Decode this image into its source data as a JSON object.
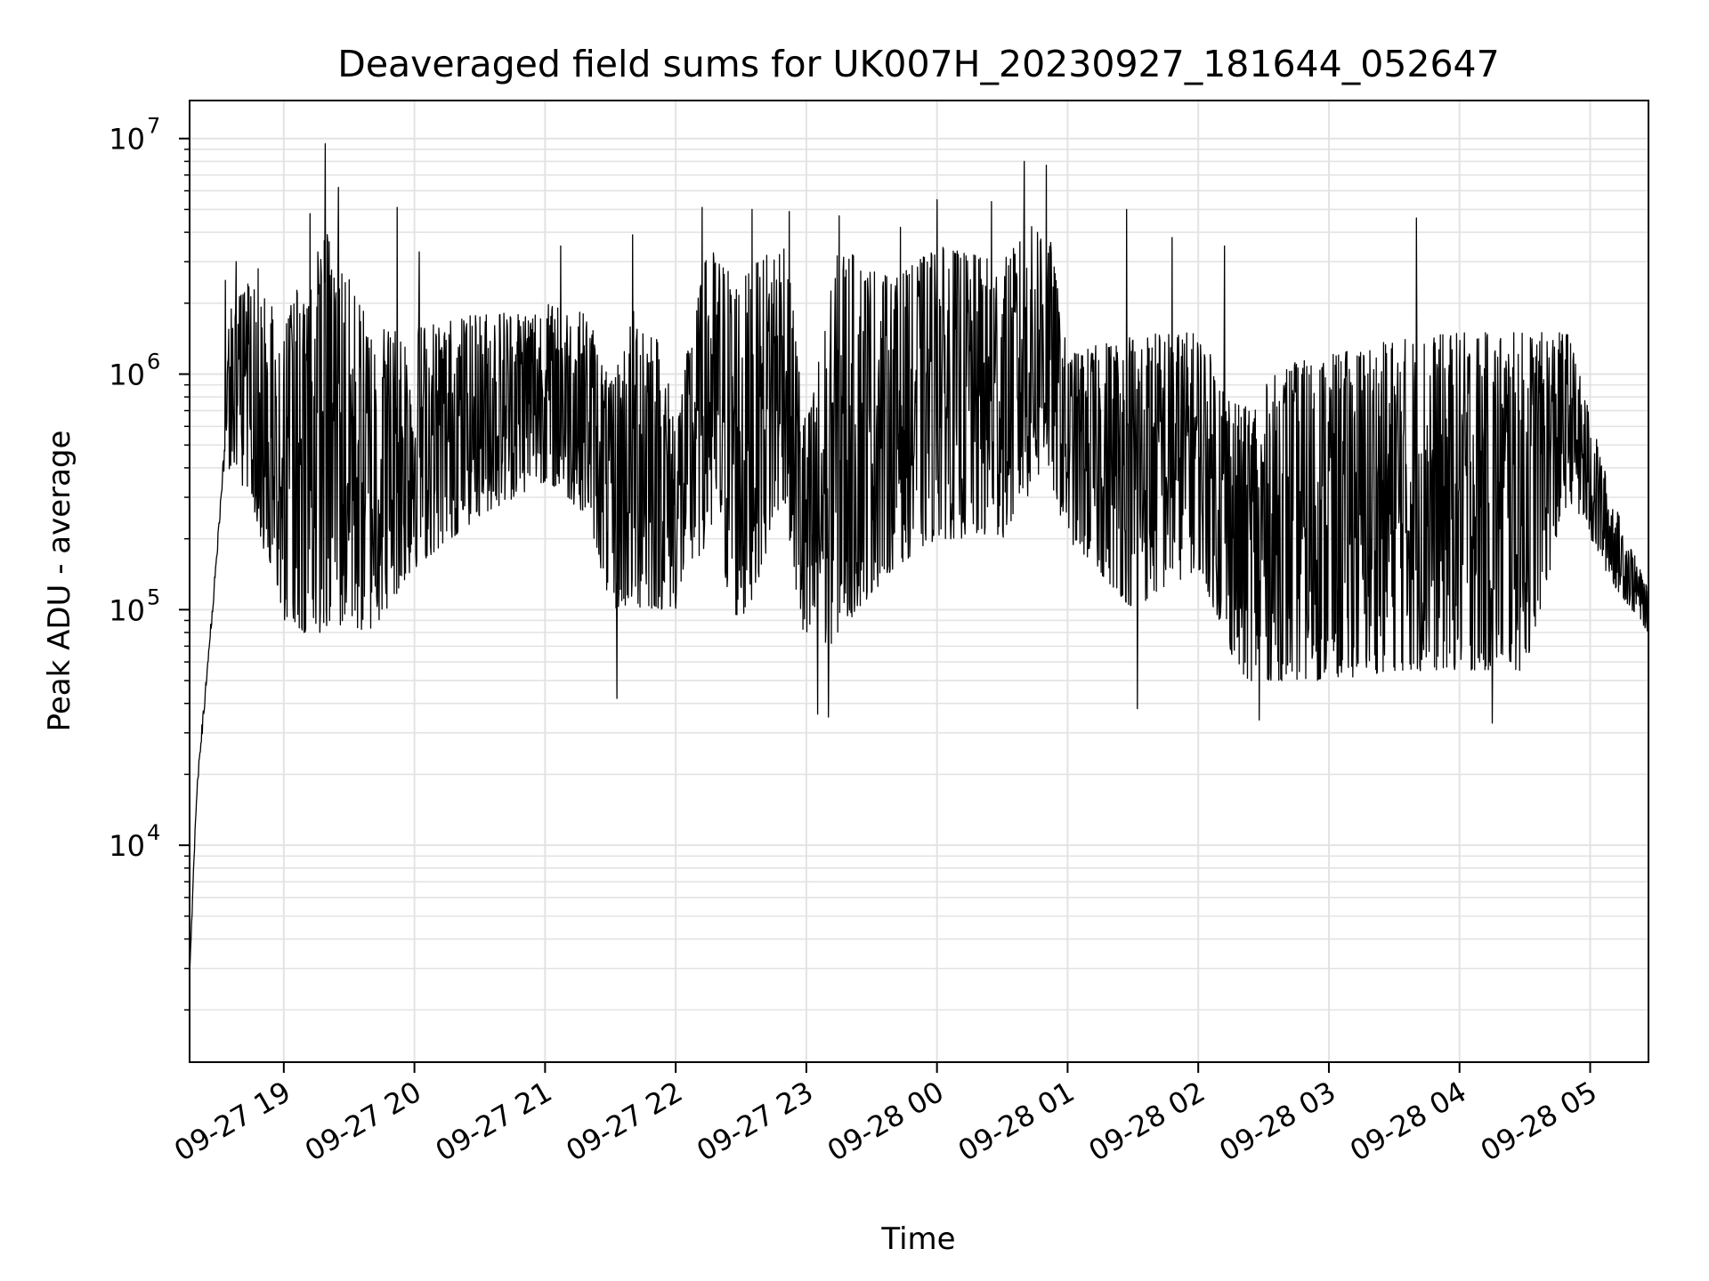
{
  "chart_data": {
    "type": "line",
    "title": "Deaveraged field sums for UK007H_20230927_181644_052647",
    "xlabel": "Time",
    "ylabel": "Peak ADU - average",
    "yscale": "log",
    "ylim": [
      1200,
      14500000
    ],
    "xlim": [
      "2023-09-27T18:16:44",
      "2023-09-28T05:26:47"
    ],
    "grid": true,
    "x_ticks": [
      {
        "t": "2023-09-27T19:00",
        "label": "09-27 19"
      },
      {
        "t": "2023-09-27T20:00",
        "label": "09-27 20"
      },
      {
        "t": "2023-09-27T21:00",
        "label": "09-27 21"
      },
      {
        "t": "2023-09-27T22:00",
        "label": "09-27 22"
      },
      {
        "t": "2023-09-27T23:00",
        "label": "09-27 23"
      },
      {
        "t": "2023-09-28T00:00",
        "label": "09-28 00"
      },
      {
        "t": "2023-09-28T01:00",
        "label": "09-28 01"
      },
      {
        "t": "2023-09-28T02:00",
        "label": "09-28 02"
      },
      {
        "t": "2023-09-28T03:00",
        "label": "09-28 03"
      },
      {
        "t": "2023-09-28T04:00",
        "label": "09-28 04"
      },
      {
        "t": "2023-09-28T05:00",
        "label": "09-28 05"
      }
    ],
    "y_ticks": [
      {
        "value": 10000,
        "base": "10",
        "exp": "4"
      },
      {
        "value": 100000,
        "base": "10",
        "exp": "5"
      },
      {
        "value": 1000000,
        "base": "10",
        "exp": "6"
      },
      {
        "value": 10000000,
        "base": "10",
        "exp": "7"
      }
    ],
    "series": [
      {
        "color": "#000000",
        "envelope": [
          {
            "t": "2023-09-27T18:16:44",
            "low": 2500,
            "high": 3200
          },
          {
            "t": "2023-09-27T18:20",
            "low": 12000,
            "high": 25000
          },
          {
            "t": "2023-09-27T18:25",
            "low": 40000,
            "high": 80000
          },
          {
            "t": "2023-09-27T18:30",
            "low": 150000,
            "high": 300000
          },
          {
            "t": "2023-09-27T18:35",
            "low": 400000,
            "high": 2000000
          },
          {
            "t": "2023-09-27T18:45",
            "low": 300000,
            "high": 2500000
          },
          {
            "t": "2023-09-27T19:00",
            "low": 80000,
            "high": 1800000
          },
          {
            "t": "2023-09-27T19:20",
            "low": 80000,
            "high": 4000000
          },
          {
            "t": "2023-09-27T19:40",
            "low": 80000,
            "high": 1600000
          },
          {
            "t": "2023-09-27T20:00",
            "low": 150000,
            "high": 1600000
          },
          {
            "t": "2023-09-27T20:30",
            "low": 250000,
            "high": 1800000
          },
          {
            "t": "2023-09-27T21:00",
            "low": 350000,
            "high": 2000000
          },
          {
            "t": "2023-09-27T21:20",
            "low": 250000,
            "high": 1800000
          },
          {
            "t": "2023-09-27T21:30",
            "low": 100000,
            "high": 900000
          },
          {
            "t": "2023-09-27T21:45",
            "low": 100000,
            "high": 2500000
          },
          {
            "t": "2023-09-27T22:00",
            "low": 100000,
            "high": 700000
          },
          {
            "t": "2023-09-27T22:15",
            "low": 200000,
            "high": 3500000
          },
          {
            "t": "2023-09-27T22:30",
            "low": 80000,
            "high": 2500000
          },
          {
            "t": "2023-09-27T22:50",
            "low": 300000,
            "high": 4000000
          },
          {
            "t": "2023-09-27T23:00",
            "low": 50000,
            "high": 600000
          },
          {
            "t": "2023-09-27T23:15",
            "low": 80000,
            "high": 3500000
          },
          {
            "t": "2023-09-27T23:40",
            "low": 150000,
            "high": 2500000
          },
          {
            "t": "2023-09-28T00:00",
            "low": 200000,
            "high": 3500000
          },
          {
            "t": "2023-09-28T00:30",
            "low": 200000,
            "high": 3000000
          },
          {
            "t": "2023-09-28T00:50",
            "low": 400000,
            "high": 5000000
          },
          {
            "t": "2023-09-28T01:00",
            "low": 200000,
            "high": 1200000
          },
          {
            "t": "2023-09-28T01:30",
            "low": 100000,
            "high": 1500000
          },
          {
            "t": "2023-09-28T02:00",
            "low": 150000,
            "high": 1500000
          },
          {
            "t": "2023-09-28T02:20",
            "low": 50000,
            "high": 700000
          },
          {
            "t": "2023-09-28T02:40",
            "low": 50000,
            "high": 1100000
          },
          {
            "t": "2023-09-28T03:00",
            "low": 50000,
            "high": 1200000
          },
          {
            "t": "2023-09-28T03:30",
            "low": 55000,
            "high": 1400000
          },
          {
            "t": "2023-09-28T04:00",
            "low": 55000,
            "high": 1500000
          },
          {
            "t": "2023-09-28T04:30",
            "low": 55000,
            "high": 1500000
          },
          {
            "t": "2023-09-28T04:50",
            "low": 300000,
            "high": 1500000
          },
          {
            "t": "2023-09-28T05:10",
            "low": 130000,
            "high": 300000
          },
          {
            "t": "2023-09-28T05:26:47",
            "low": 80000,
            "high": 120000
          }
        ],
        "peaks": [
          {
            "t": "2023-09-27T18:33",
            "value": 2500000
          },
          {
            "t": "2023-09-27T18:38",
            "value": 3000000
          },
          {
            "t": "2023-09-27T18:48",
            "value": 2800000
          },
          {
            "t": "2023-09-27T19:12",
            "value": 4800000
          },
          {
            "t": "2023-09-27T19:19",
            "value": 9500000
          },
          {
            "t": "2023-09-27T19:25",
            "value": 6200000
          },
          {
            "t": "2023-09-27T19:52",
            "value": 5100000
          },
          {
            "t": "2023-09-27T20:02",
            "value": 3300000
          },
          {
            "t": "2023-09-27T21:07",
            "value": 3500000
          },
          {
            "t": "2023-09-27T21:40",
            "value": 3900000
          },
          {
            "t": "2023-09-27T22:12",
            "value": 5100000
          },
          {
            "t": "2023-09-27T22:35",
            "value": 5000000
          },
          {
            "t": "2023-09-27T22:52",
            "value": 4900000
          },
          {
            "t": "2023-09-27T23:15",
            "value": 4700000
          },
          {
            "t": "2023-09-27T23:43",
            "value": 4200000
          },
          {
            "t": "2023-09-28T00:00",
            "value": 5500000
          },
          {
            "t": "2023-09-28T00:25",
            "value": 5400000
          },
          {
            "t": "2023-09-28T00:40",
            "value": 8000000
          },
          {
            "t": "2023-09-28T00:50",
            "value": 7700000
          },
          {
            "t": "2023-09-28T01:27",
            "value": 5000000
          },
          {
            "t": "2023-09-28T01:48",
            "value": 3800000
          },
          {
            "t": "2023-09-28T02:12",
            "value": 3500000
          },
          {
            "t": "2023-09-28T03:40",
            "value": 4600000
          }
        ],
        "troughs": [
          {
            "t": "2023-09-27T21:33",
            "value": 42000
          },
          {
            "t": "2023-09-27T23:05",
            "value": 36000
          },
          {
            "t": "2023-09-27T23:10",
            "value": 35000
          },
          {
            "t": "2023-09-28T01:32",
            "value": 38000
          },
          {
            "t": "2023-09-28T02:28",
            "value": 34000
          },
          {
            "t": "2023-09-28T04:15",
            "value": 33000
          }
        ]
      }
    ]
  }
}
